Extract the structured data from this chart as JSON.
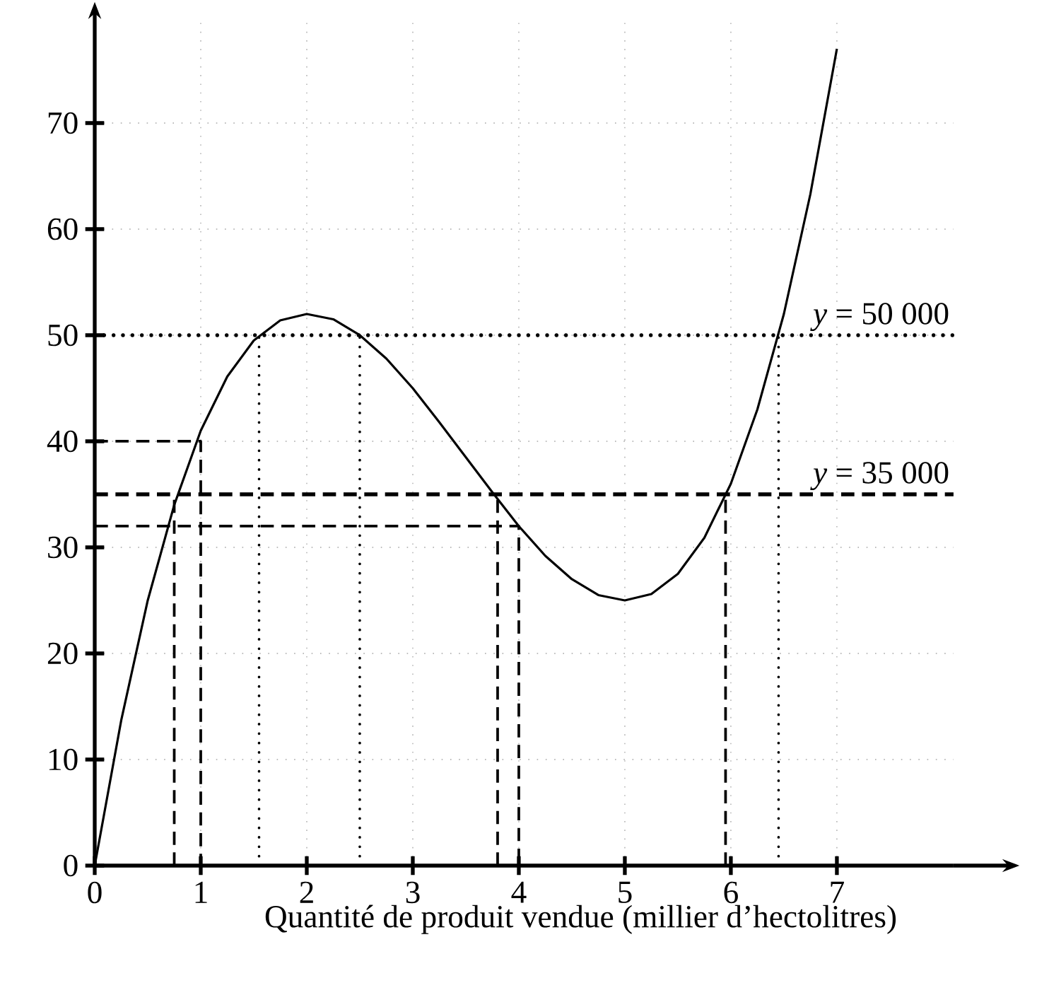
{
  "chart_data": {
    "type": "line",
    "xlabel": "Quantité de produit vendue (millier d’hectolitres)",
    "xlim": [
      0,
      8.1
    ],
    "ylim": [
      0,
      80
    ],
    "xticks": [
      0,
      1,
      2,
      3,
      4,
      5,
      6,
      7
    ],
    "yticks": [
      0,
      10,
      20,
      30,
      40,
      50,
      60,
      70
    ],
    "grid": true,
    "marker": "none",
    "line_style": "solid",
    "ref_lines": [
      {
        "axis": "y",
        "value": 50,
        "label": "*y* = 50 000",
        "line_style": "dotted",
        "color": "#000000"
      },
      {
        "axis": "y",
        "value": 35,
        "label": "*y* = 35 000",
        "line_style": "dashed",
        "color": "#000000"
      }
    ],
    "series": [
      {
        "color": "#000000",
        "x": [
          0,
          0.25,
          0.5,
          0.75,
          1,
          1.25,
          1.5,
          1.75,
          2,
          2.25,
          2.5,
          2.75,
          3,
          3.25,
          3.5,
          3.75,
          4,
          4.25,
          4.5,
          4.75,
          5,
          5.25,
          5.5,
          5.75,
          6,
          6.25,
          6.5,
          6.75,
          7
        ],
        "values": [
          0,
          13.7,
          25,
          34,
          41,
          46.1,
          49.5,
          51.4,
          52,
          51.5,
          50,
          47.8,
          45,
          41.8,
          38.5,
          35.2,
          32,
          29.2,
          27,
          25.5,
          25,
          25.6,
          27.5,
          30.9,
          36,
          43,
          52,
          63.3,
          77
        ]
      },
      {
        "color": "#000000",
        "line_style": "dashed",
        "x": [
          0,
          1,
          1
        ],
        "values": [
          40,
          40,
          0
        ]
      },
      {
        "color": "#000000",
        "line_style": "dashed",
        "x": [
          0,
          4,
          4
        ],
        "values": [
          32,
          32,
          0
        ]
      },
      {
        "color": "#000000",
        "line_style": "dashed",
        "x": [
          0.75,
          0.75
        ],
        "values": [
          0,
          35
        ]
      },
      {
        "color": "#000000",
        "line_style": "dashed",
        "x": [
          3.8,
          3.8
        ],
        "values": [
          0,
          35
        ]
      },
      {
        "color": "#000000",
        "line_style": "dashed",
        "x": [
          5.95,
          5.95
        ],
        "values": [
          0,
          35
        ]
      },
      {
        "color": "#000000",
        "line_style": "dotted",
        "x": [
          1.55,
          1.55
        ],
        "values": [
          0,
          50
        ]
      },
      {
        "color": "#000000",
        "line_style": "dotted",
        "x": [
          2.5,
          2.5
        ],
        "values": [
          0,
          50
        ]
      },
      {
        "color": "#000000",
        "line_style": "dotted",
        "x": [
          6.45,
          6.45
        ],
        "values": [
          0,
          50
        ]
      }
    ]
  }
}
